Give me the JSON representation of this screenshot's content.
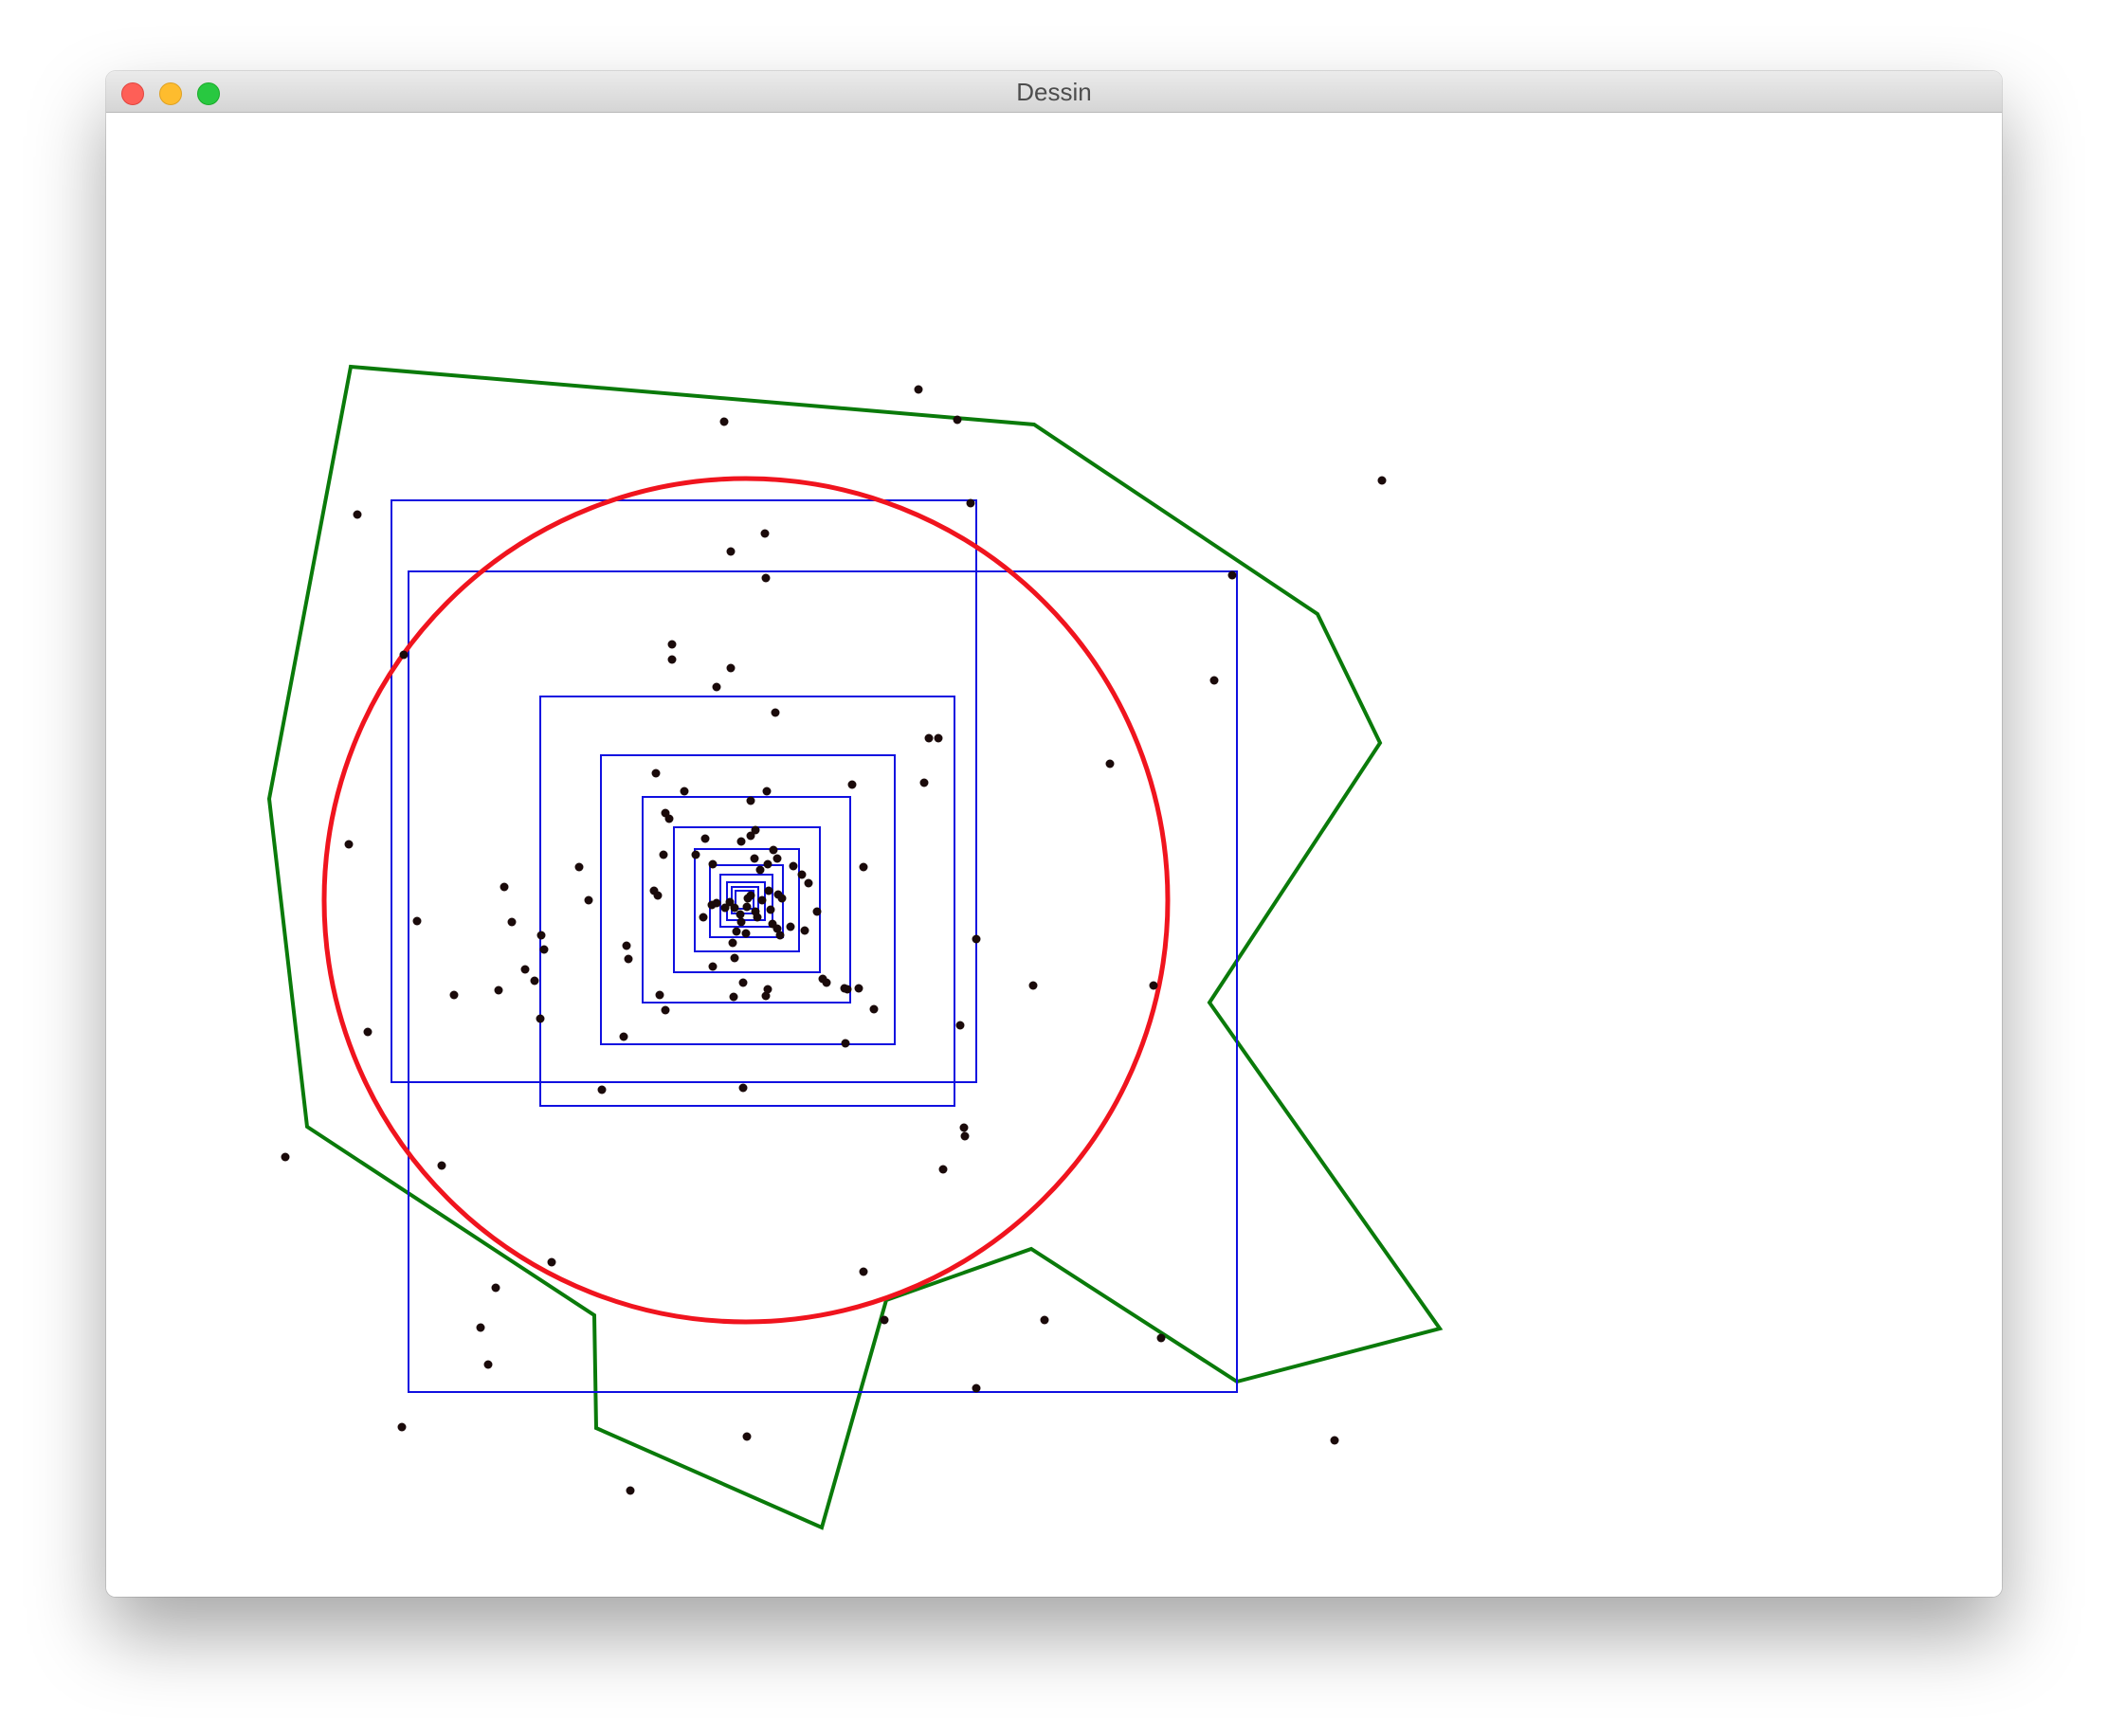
{
  "window": {
    "title": "Dessin"
  },
  "colors": {
    "polygon": "#0a7a0a",
    "circle": "#f0141e",
    "squares": "#1010e0",
    "points": "#1a0a0a"
  },
  "icons": [
    "close-icon",
    "minimize-icon",
    "zoom-icon"
  ]
}
